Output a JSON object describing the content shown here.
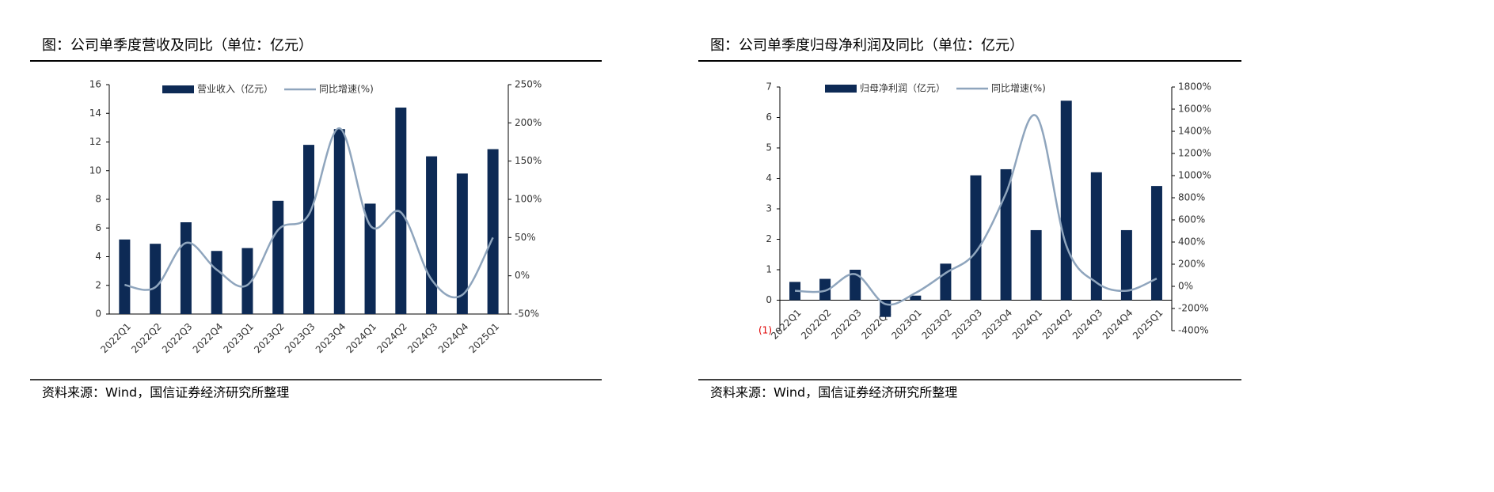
{
  "chart_data": [
    {
      "type": "combo",
      "title": "图：公司单季度营收及同比（单位：亿元）",
      "source": "资料来源：Wind，国信证券经济研究所整理",
      "categories": [
        "2022Q1",
        "2022Q2",
        "2022Q3",
        "2022Q4",
        "2023Q1",
        "2023Q2",
        "2023Q3",
        "2023Q4",
        "2024Q1",
        "2024Q2",
        "2024Q3",
        "2024Q4",
        "2025Q1"
      ],
      "series": [
        {
          "name": "营业收入（亿元）",
          "type": "bar",
          "color": "#0d2a55",
          "values": [
            5.2,
            4.9,
            6.4,
            4.4,
            4.6,
            7.9,
            11.8,
            12.9,
            7.7,
            14.4,
            11.0,
            9.8,
            11.5
          ]
        },
        {
          "name": "同比增速(%)",
          "type": "line",
          "axis": "y2",
          "color": "#8fa5bd",
          "values": [
            -12,
            -15,
            43,
            8,
            -12,
            60,
            80,
            193,
            66,
            83,
            -5,
            -25,
            50
          ]
        }
      ],
      "ylim": [
        0,
        16
      ],
      "yticks": [
        0,
        2,
        4,
        6,
        8,
        10,
        12,
        14,
        16
      ],
      "y2lim": [
        -50,
        250
      ],
      "y2ticks": [
        {
          "value": -50,
          "label": "-50%"
        },
        {
          "value": 0,
          "label": "0%"
        },
        {
          "value": 50,
          "label": "50%"
        },
        {
          "value": 100,
          "label": "100%"
        },
        {
          "value": 150,
          "label": "150%"
        },
        {
          "value": 200,
          "label": "200%"
        },
        {
          "value": 250,
          "label": "250%"
        }
      ]
    },
    {
      "type": "combo",
      "title": "图：公司单季度归母净利润及同比（单位：亿元）",
      "source": "资料来源：Wind，国信证券经济研究所整理",
      "categories": [
        "2022Q1",
        "2022Q2",
        "2022Q3",
        "2022Q4",
        "2023Q1",
        "2023Q2",
        "2023Q3",
        "2023Q4",
        "2024Q1",
        "2024Q2",
        "2024Q3",
        "2024Q4",
        "2025Q1"
      ],
      "series": [
        {
          "name": "归母净利润（亿元）",
          "type": "bar",
          "color": "#0d2a55",
          "values": [
            0.6,
            0.7,
            1.0,
            -0.55,
            0.15,
            1.2,
            4.1,
            4.3,
            2.3,
            6.55,
            4.2,
            2.3,
            3.75
          ]
        },
        {
          "name": "同比增速(%)",
          "type": "line",
          "axis": "y2",
          "color": "#8fa5bd",
          "values": [
            -40,
            -40,
            110,
            -160,
            -60,
            120,
            310,
            840,
            1540,
            370,
            35,
            -40,
            70
          ]
        }
      ],
      "ylim": [
        -1,
        7
      ],
      "yticks": [
        {
          "value": -1,
          "label": "(1)"
        },
        0,
        1,
        2,
        3,
        4,
        5,
        6,
        7
      ],
      "negative_label_color": "#e00000",
      "y2lim": [
        -400,
        1800
      ],
      "y2ticks": [
        {
          "value": -400,
          "label": "-400%"
        },
        {
          "value": -200,
          "label": "-200%"
        },
        {
          "value": 0,
          "label": "0%"
        },
        {
          "value": 200,
          "label": "200%"
        },
        {
          "value": 400,
          "label": "400%"
        },
        {
          "value": 600,
          "label": "600%"
        },
        {
          "value": 800,
          "label": "800%"
        },
        {
          "value": 1000,
          "label": "1000%"
        },
        {
          "value": 1200,
          "label": "1200%"
        },
        {
          "value": 1400,
          "label": "1400%"
        },
        {
          "value": 1600,
          "label": "1600%"
        },
        {
          "value": 1800,
          "label": "1800%"
        }
      ]
    }
  ]
}
